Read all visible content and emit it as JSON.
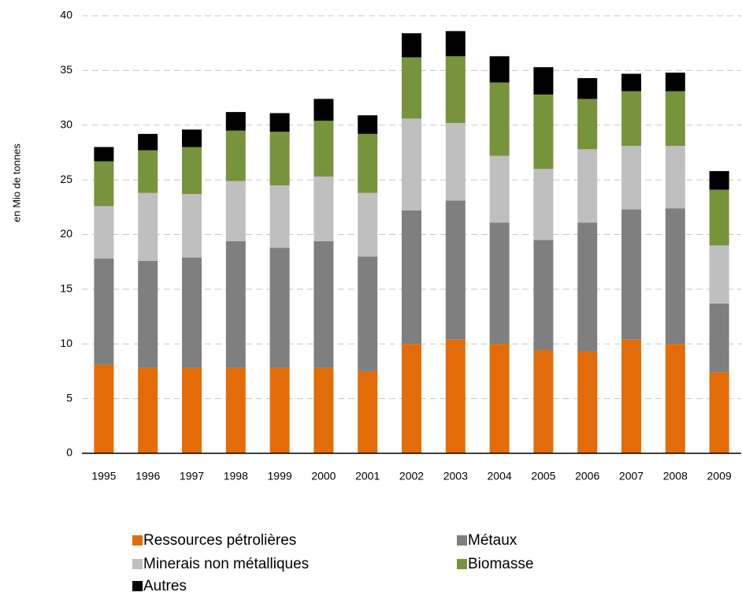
{
  "chart_data": {
    "type": "stacked_bar",
    "y_label": "en Mio de tonnes",
    "categories": [
      "1995",
      "1996",
      "1997",
      "1998",
      "1999",
      "2000",
      "2001",
      "2002",
      "2003",
      "2004",
      "2005",
      "2006",
      "2007",
      "2008",
      "2009"
    ],
    "series": [
      {
        "name": "Ressources pétrolières",
        "color": "#e36c09",
        "values": [
          8.1,
          7.8,
          7.8,
          7.8,
          7.8,
          7.8,
          7.5,
          10.0,
          10.4,
          10.0,
          9.4,
          9.3,
          10.4,
          10.0,
          7.4
        ]
      },
      {
        "name": "Métaux",
        "color": "#7f7f7f",
        "values": [
          9.7,
          9.8,
          10.1,
          11.6,
          11.0,
          11.6,
          10.5,
          12.2,
          12.7,
          11.1,
          10.1,
          11.8,
          11.9,
          12.4,
          6.3
        ]
      },
      {
        "name": "Minerais non métalliques",
        "color": "#bfbfbf",
        "values": [
          4.8,
          6.2,
          5.8,
          5.5,
          5.7,
          5.9,
          5.8,
          8.4,
          7.1,
          6.1,
          6.5,
          6.7,
          5.8,
          5.7,
          5.3
        ]
      },
      {
        "name": "Biomasse",
        "color": "#77933c",
        "values": [
          4.1,
          3.9,
          4.3,
          4.6,
          4.9,
          5.1,
          5.4,
          5.6,
          6.1,
          6.7,
          6.8,
          4.6,
          5.0,
          5.0,
          5.1
        ]
      },
      {
        "name": "Autres",
        "color": "#000000",
        "values": [
          1.3,
          1.5,
          1.6,
          1.7,
          1.7,
          2.0,
          1.7,
          2.2,
          2.3,
          2.4,
          2.5,
          1.9,
          1.6,
          1.7,
          1.7
        ]
      }
    ],
    "ylim": [
      0,
      40
    ],
    "yticks": [
      0,
      5,
      10,
      15,
      20,
      25,
      30,
      35,
      40
    ],
    "grid": true
  }
}
